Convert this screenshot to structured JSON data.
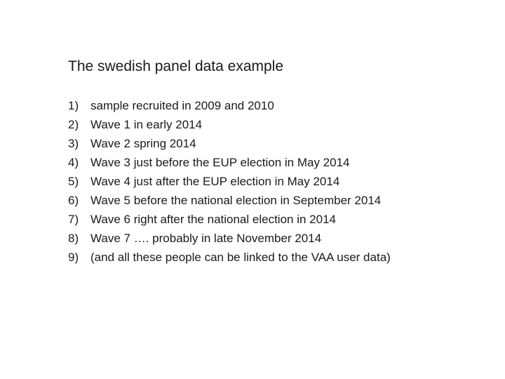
{
  "slide": {
    "title": "The swedish panel data example",
    "items": [
      {
        "num": "1)",
        "text": "sample recruited in 2009 and 2010"
      },
      {
        "num": "2)",
        "text": "Wave 1 in early 2014"
      },
      {
        "num": "3)",
        "text": "Wave 2 spring 2014"
      },
      {
        "num": "4)",
        "text": "Wave 3 just before the EUP election in May 2014"
      },
      {
        "num": "5)",
        "text": "Wave 4 just after the EUP election in May 2014"
      },
      {
        "num": "6)",
        "text": "Wave 5 before the national election in September 2014"
      },
      {
        "num": "7)",
        "text": "Wave 6 right after the national election in 2014"
      },
      {
        "num": "8)",
        "text": "Wave 7 …. probably in late November 2014"
      },
      {
        "num": "9)",
        "text": "(and all these people can be linked to the VAA user data)"
      }
    ]
  }
}
